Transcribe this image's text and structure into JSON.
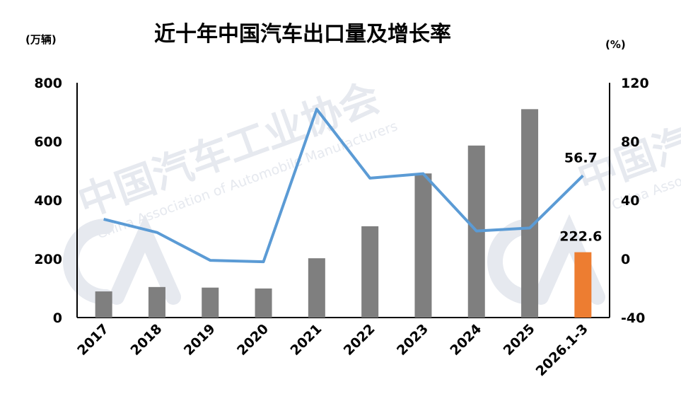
{
  "chart_data": {
    "type": "bar",
    "title": "近十年中国汽车出口量及增长率",
    "left_unit": "(万辆)",
    "right_unit": "(%)",
    "categories": [
      "2017",
      "2018",
      "2019",
      "2020",
      "2021",
      "2022",
      "2023",
      "2024",
      "2025",
      "2026.1-3"
    ],
    "series": [
      {
        "values": [
          89,
          104,
          102,
          99,
          202,
          311,
          491,
          586,
          710,
          222.6
        ],
        "colors": [
          "#7f7f7f",
          "#7f7f7f",
          "#7f7f7f",
          "#7f7f7f",
          "#7f7f7f",
          "#7f7f7f",
          "#7f7f7f",
          "#7f7f7f",
          "#7f7f7f",
          "#ed7d31"
        ],
        "axis": "left"
      },
      {
        "type": "line",
        "values": [
          27,
          18,
          -1,
          -2,
          102,
          55,
          58,
          19,
          21,
          56.7
        ],
        "color": "#5b9bd5",
        "axis": "right"
      }
    ],
    "ylim_left": [
      0,
      800
    ],
    "yticks_left": [
      "0",
      "200",
      "400",
      "600",
      "800"
    ],
    "ylim_right": [
      -40,
      120
    ],
    "yticks_right": [
      "-40",
      "0",
      "40",
      "80",
      "120"
    ],
    "data_labels": [
      {
        "series": 0,
        "index": 9,
        "text": "222.6"
      },
      {
        "series": 1,
        "index": 9,
        "text": "56.7"
      }
    ],
    "grid": false,
    "legend": "none"
  },
  "watermark": {
    "text": "中国汽车工业协会",
    "subtext": "China Association of Automobile Manufacturers",
    "side_text": "中国汽",
    "side_subtext": "China Asso",
    "color": "#e6e9ef"
  }
}
